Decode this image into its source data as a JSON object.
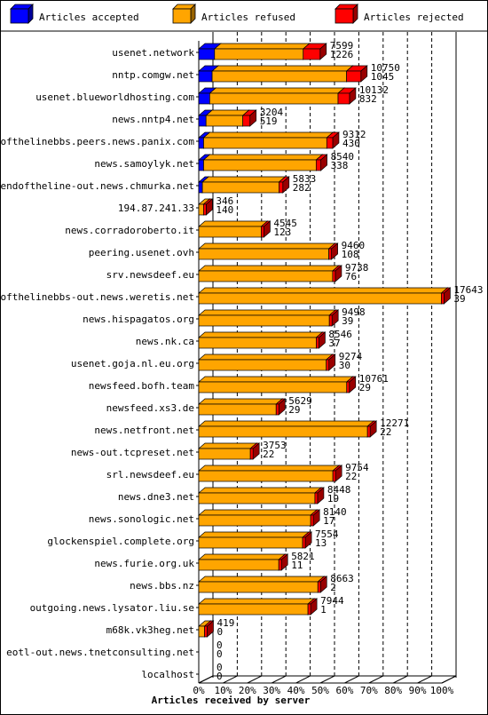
{
  "chart_data": {
    "type": "bar",
    "orientation": "horizontal",
    "stacked": true,
    "title": "Articles received by server",
    "xlim": [
      0,
      100
    ],
    "x_ticks": [
      "0%",
      "10%",
      "20%",
      "30%",
      "40%",
      "50%",
      "60%",
      "70%",
      "80%",
      "90%",
      "100%"
    ],
    "legend_position": "top",
    "legend": [
      {
        "name": "Articles accepted",
        "color": "#0000ff"
      },
      {
        "name": "Articles refused",
        "color": "#ffa500"
      },
      {
        "name": "Articles rejected",
        "color": "#ff0000"
      }
    ],
    "categories": [
      {
        "server": "usenet.network",
        "refused": 7599,
        "rejected": 1226,
        "accepted_pct": 6.5
      },
      {
        "server": "nntp.comgw.net",
        "refused": 10750,
        "rejected": 1045,
        "accepted_pct": 5.5
      },
      {
        "server": "usenet.blueworldhosting.com",
        "refused": 10132,
        "rejected": 832,
        "accepted_pct": 4.5
      },
      {
        "server": "news.nntp4.net",
        "refused": 3204,
        "rejected": 519,
        "accepted_pct": 3.0
      },
      {
        "server": "endofthelinebbs.peers.news.panix.com",
        "refused": 9312,
        "rejected": 430,
        "accepted_pct": 2.0
      },
      {
        "server": "news.samoylyk.net",
        "refused": 8540,
        "rejected": 338,
        "accepted_pct": 2.0
      },
      {
        "server": "endoftheline-out.news.chmurka.net",
        "refused": 5833,
        "rejected": 282,
        "accepted_pct": 1.5
      },
      {
        "server": "194.87.241.33",
        "refused": 346,
        "rejected": 140,
        "accepted_pct": 0
      },
      {
        "server": "news.corradoroberto.it",
        "refused": 4545,
        "rejected": 123,
        "accepted_pct": 0
      },
      {
        "server": "peering.usenet.ovh",
        "refused": 9460,
        "rejected": 108,
        "accepted_pct": 0
      },
      {
        "server": "srv.newsdeef.eu",
        "refused": 9738,
        "rejected": 76,
        "accepted_pct": 0
      },
      {
        "server": "endofthelinebbs-out.news.weretis.net",
        "refused": 17643,
        "rejected": 39,
        "accepted_pct": 0
      },
      {
        "server": "news.hispagatos.org",
        "refused": 9498,
        "rejected": 39,
        "accepted_pct": 0
      },
      {
        "server": "news.nk.ca",
        "refused": 8546,
        "rejected": 37,
        "accepted_pct": 0
      },
      {
        "server": "usenet.goja.nl.eu.org",
        "refused": 9274,
        "rejected": 30,
        "accepted_pct": 0
      },
      {
        "server": "newsfeed.bofh.team",
        "refused": 10761,
        "rejected": 29,
        "accepted_pct": 0
      },
      {
        "server": "newsfeed.xs3.de",
        "refused": 5629,
        "rejected": 29,
        "accepted_pct": 0
      },
      {
        "server": "news.netfront.net",
        "refused": 12271,
        "rejected": 22,
        "accepted_pct": 0
      },
      {
        "server": "news-out.tcpreset.net",
        "refused": 3753,
        "rejected": 22,
        "accepted_pct": 0
      },
      {
        "server": "srl.newsdeef.eu",
        "refused": 9754,
        "rejected": 22,
        "accepted_pct": 0
      },
      {
        "server": "news.dne3.net",
        "refused": 8448,
        "rejected": 19,
        "accepted_pct": 0
      },
      {
        "server": "news.sonologic.net",
        "refused": 8140,
        "rejected": 17,
        "accepted_pct": 0
      },
      {
        "server": "glockenspiel.complete.org",
        "refused": 7554,
        "rejected": 13,
        "accepted_pct": 0
      },
      {
        "server": "news.furie.org.uk",
        "refused": 5821,
        "rejected": 11,
        "accepted_pct": 0
      },
      {
        "server": "news.bbs.nz",
        "refused": 8663,
        "rejected": 2,
        "accepted_pct": 0
      },
      {
        "server": "outgoing.news.lysator.liu.se",
        "refused": 7944,
        "rejected": 1,
        "accepted_pct": 0
      },
      {
        "server": "m68k.vk3heg.net",
        "refused": 419,
        "rejected": 0,
        "accepted_pct": 0
      },
      {
        "server": "eotl-out.news.tnetconsulting.net",
        "refused": 0,
        "rejected": 0,
        "accepted_pct": 0
      },
      {
        "server": "localhost",
        "refused": 0,
        "rejected": 0,
        "accepted_pct": 0
      }
    ]
  }
}
